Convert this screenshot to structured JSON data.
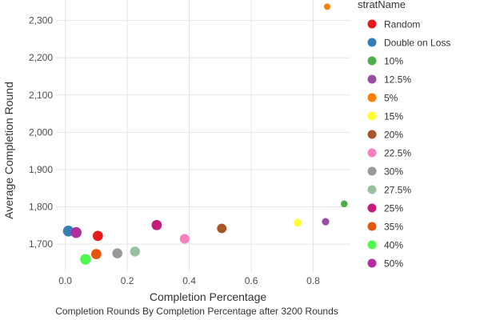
{
  "chart_data": {
    "type": "scatter",
    "title": "",
    "caption": "Completion Rounds By Completion Percentage after 3200 Rounds",
    "xlabel": "Completion Percentage",
    "ylabel": "Average Completion Round",
    "xlim": [
      -0.03,
      0.92
    ],
    "ylim": [
      1625,
      2355
    ],
    "x_ticks": [
      0.0,
      0.2,
      0.4,
      0.6,
      0.8
    ],
    "x_tick_labels": [
      "0.0",
      "0.2",
      "0.4",
      "0.6",
      "0.8"
    ],
    "y_ticks": [
      1700,
      1800,
      1900,
      2000,
      2100,
      2200,
      2300
    ],
    "y_tick_labels": [
      "1,700",
      "1,800",
      "1,900",
      "2,000",
      "2,100",
      "2,200",
      "2,300"
    ],
    "grid": true,
    "legend_title": "stratName",
    "legend_position": "right",
    "series": [
      {
        "name": "Random",
        "color": "#E41A1C",
        "x": 0.105,
        "y": 1722
      },
      {
        "name": "Double on Loss",
        "color": "#377EB8",
        "x": 0.01,
        "y": 1735
      },
      {
        "name": "10%",
        "color": "#4DAF4A",
        "x": 0.9,
        "y": 1808
      },
      {
        "name": "12.5%",
        "color": "#984EA3",
        "x": 0.84,
        "y": 1760
      },
      {
        "name": "5%",
        "color": "#FF7F00",
        "x": 0.845,
        "y": 2337
      },
      {
        "name": "15%",
        "color": "#FFFF33",
        "x": 0.75,
        "y": 1757
      },
      {
        "name": "20%",
        "color": "#A65628",
        "x": 0.505,
        "y": 1742
      },
      {
        "name": "22.5%",
        "color": "#F781BF",
        "x": 0.385,
        "y": 1714
      },
      {
        "name": "30%",
        "color": "#999999",
        "x": 0.168,
        "y": 1675
      },
      {
        "name": "27.5%",
        "color": "#99C1A0",
        "x": 0.225,
        "y": 1680
      },
      {
        "name": "25%",
        "color": "#C51B7D",
        "x": 0.295,
        "y": 1751
      },
      {
        "name": "35%",
        "color": "#E6550D",
        "x": 0.1,
        "y": 1673
      },
      {
        "name": "40%",
        "color": "#4EFA4E",
        "x": 0.065,
        "y": 1659
      },
      {
        "name": "50%",
        "color": "#B22DA0",
        "x": 0.035,
        "y": 1731
      }
    ],
    "point_sizes": {
      "Random": 0.72,
      "Double on Loss": 0.82,
      "10%": 0.25,
      "12.5%": 0.32,
      "5%": 0.18,
      "15%": 0.38,
      "20%": 0.62,
      "22.5%": 0.64,
      "30%": 0.7,
      "27.5%": 0.68,
      "25%": 0.72,
      "35%": 0.72,
      "40%": 0.78,
      "50%": 0.82
    }
  }
}
